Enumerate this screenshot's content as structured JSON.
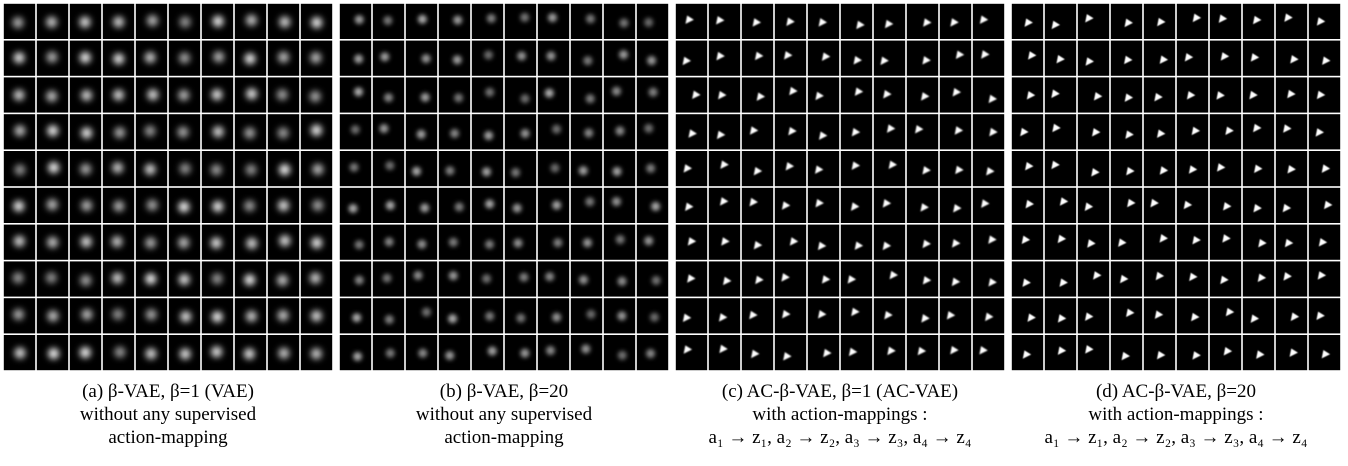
{
  "panels": [
    {
      "caption": [
        "(a) β-VAE, β=1 (VAE)",
        "without any supervised",
        "action-mapping"
      ]
    },
    {
      "caption": [
        "(b) β-VAE, β=20",
        "without any supervised",
        "action-mapping"
      ]
    },
    {
      "caption": [
        "(c) AC-β-VAE, β=1 (AC-VAE)",
        "with action-mappings :",
        "a₁ → z₁, a₂ → z₂, a₃ → z₃, a₄ → z₄"
      ]
    },
    {
      "caption": [
        "(d) AC-β-VAE, β=20",
        "with action-mappings :",
        "a₁ → z₁, a₂ → z₂, a₃ → z₃, a₄ → z₄"
      ]
    }
  ]
}
